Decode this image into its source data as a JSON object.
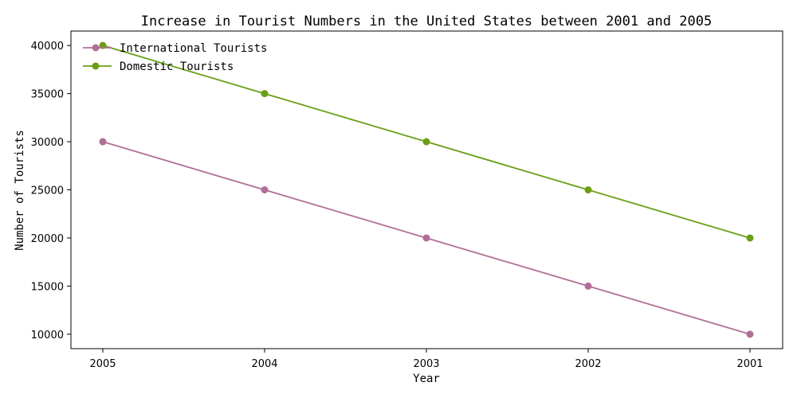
{
  "chart_data": {
    "type": "line",
    "title": "Increase in Tourist Numbers in the United States between 2001 and 2005",
    "xlabel": "Year",
    "ylabel": "Number of Tourists",
    "categories": [
      "2005",
      "2004",
      "2003",
      "2002",
      "2001"
    ],
    "series": [
      {
        "name": "International Tourists",
        "values": [
          30000,
          25000,
          20000,
          15000,
          10000
        ],
        "color": "#b06f96"
      },
      {
        "name": "Domestic Tourists",
        "values": [
          40000,
          35000,
          30000,
          25000,
          20000
        ],
        "color": "#6a9f15"
      }
    ],
    "yticks": [
      10000,
      15000,
      20000,
      25000,
      30000,
      35000,
      40000
    ],
    "ylim": [
      8500,
      41500
    ],
    "grid": false,
    "legend": "top-left"
  }
}
